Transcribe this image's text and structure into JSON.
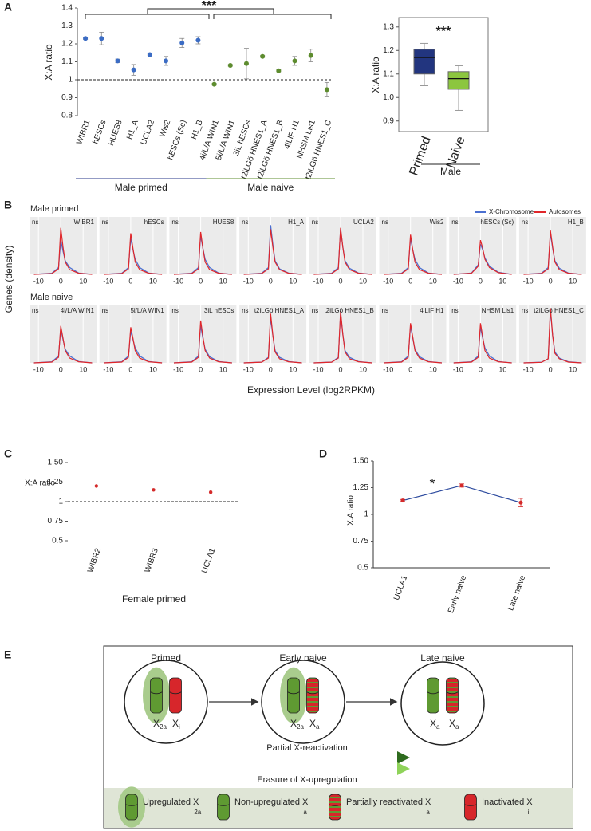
{
  "panels": [
    "A",
    "B",
    "C",
    "D",
    "E"
  ],
  "chart_data": [
    {
      "type": "dot-errorbar",
      "ylabel": "X:A ratio",
      "ylim": [
        0.8,
        1.4
      ],
      "yticks": [
        0.8,
        0.9,
        1,
        1.1,
        1.2,
        1.3,
        1.4
      ],
      "hline": 1,
      "annotation": "***",
      "series": [
        {
          "name": "Male primed",
          "color": "#3b6cc4",
          "label_color": "#27378a",
          "categories": [
            "WIBR1",
            "hESCs",
            "HUES8",
            "H1_A",
            "UCLA2",
            "Wis2",
            "hESCs (Sc)",
            "H1_B"
          ],
          "values": [
            1.23,
            1.23,
            1.105,
            1.055,
            1.14,
            1.105,
            1.205,
            1.22
          ],
          "errors": [
            0.005,
            0.035,
            0.01,
            0.03,
            0.005,
            0.025,
            0.025,
            0.02
          ]
        },
        {
          "name": "Male naive",
          "color": "#5d8c2e",
          "label_color": "#5d8c2e",
          "categories": [
            "4i/L/A WIN1",
            "5i/L/A WIN1",
            "3iL hESCs",
            "t2iLGö HNES1_A",
            "t2iLGö HNES1_B",
            "4iLIF H1",
            "NHSM Lis1",
            "t2iLGö HNES1_C"
          ],
          "values": [
            0.975,
            1.08,
            1.09,
            1.13,
            1.05,
            1.105,
            1.135,
            0.945
          ],
          "errors": [
            0.005,
            0.005,
            0.085,
            0.005,
            0.005,
            0.025,
            0.035,
            0.04
          ]
        }
      ]
    },
    {
      "type": "box",
      "ylabel": "X:A ratio",
      "ylim": [
        0.855,
        1.34
      ],
      "yticks": [
        0.9,
        {
          "value": 1,
          "label": "1.0"
        },
        1.1,
        1.2,
        1.3
      ],
      "annotation": "***",
      "xlabel": "Male",
      "categories": [
        "Primed",
        "Naive"
      ],
      "colors": [
        "#22357f",
        "#8cc63f"
      ],
      "label_colors": [
        "#22357f",
        "#6aa632"
      ],
      "min": [
        1.05,
        0.945
      ],
      "q1": [
        1.1,
        1.035
      ],
      "median": [
        1.17,
        1.08
      ],
      "q3": [
        1.205,
        1.11
      ],
      "max": [
        1.23,
        1.135
      ]
    },
    {
      "type": "density-facets",
      "ylabel": "Genes (density)",
      "xlabel": "Expression Level (log2RPKM)",
      "xlim": [
        -14,
        16
      ],
      "ylim": [
        0,
        0.42
      ],
      "xticks": [
        -10,
        0,
        10
      ],
      "x": [
        -12,
        -4,
        -1,
        0,
        1,
        2,
        4,
        8,
        14
      ],
      "series": [
        {
          "name": "X-Chromosome",
          "color": "#4a6fd0"
        },
        {
          "name": "Autosomes",
          "color": "#e0262a"
        }
      ],
      "rows": [
        {
          "title": "Male primed",
          "facets": [
            {
              "label": "WIBR1",
              "annotation": "ns",
              "values": [
                [
                  0,
                  0.008,
                  0.05,
                  0.25,
                  0.17,
                  0.1,
                  0.05,
                  0.01,
                  0
                ],
                [
                  0,
                  0.006,
                  0.04,
                  0.34,
                  0.2,
                  0.09,
                  0.035,
                  0.008,
                  0
                ]
              ]
            },
            {
              "label": "hESCs",
              "annotation": "ns",
              "values": [
                [
                  0,
                  0.008,
                  0.05,
                  0.26,
                  0.18,
                  0.11,
                  0.05,
                  0.01,
                  0
                ],
                [
                  0,
                  0.006,
                  0.04,
                  0.3,
                  0.19,
                  0.09,
                  0.035,
                  0.008,
                  0
                ]
              ]
            },
            {
              "label": "HUES8",
              "annotation": "ns",
              "values": [
                [
                  0,
                  0.008,
                  0.05,
                  0.28,
                  0.19,
                  0.11,
                  0.05,
                  0.01,
                  0
                ],
                [
                  0,
                  0.006,
                  0.04,
                  0.31,
                  0.19,
                  0.09,
                  0.035,
                  0.008,
                  0
                ]
              ]
            },
            {
              "label": "H1_A",
              "annotation": "ns",
              "values": [
                [
                  0,
                  0.008,
                  0.05,
                  0.36,
                  0.22,
                  0.1,
                  0.04,
                  0.01,
                  0
                ],
                [
                  0,
                  0.006,
                  0.04,
                  0.33,
                  0.2,
                  0.09,
                  0.035,
                  0.008,
                  0
                ]
              ]
            },
            {
              "label": "UCLA2",
              "annotation": "ns",
              "values": [
                [
                  0,
                  0.008,
                  0.05,
                  0.33,
                  0.2,
                  0.1,
                  0.045,
                  0.01,
                  0
                ],
                [
                  0,
                  0.006,
                  0.04,
                  0.34,
                  0.2,
                  0.09,
                  0.035,
                  0.008,
                  0
                ]
              ]
            },
            {
              "label": "Wis2",
              "annotation": "ns",
              "values": [
                [
                  0,
                  0.008,
                  0.05,
                  0.26,
                  0.18,
                  0.11,
                  0.05,
                  0.01,
                  0
                ],
                [
                  0,
                  0.006,
                  0.04,
                  0.29,
                  0.18,
                  0.09,
                  0.035,
                  0.008,
                  0
                ]
              ]
            },
            {
              "label": "hESCs (Sc)",
              "annotation": "ns",
              "values": [
                [
                  0,
                  0.01,
                  0.07,
                  0.22,
                  0.18,
                  0.12,
                  0.06,
                  0.015,
                  0
                ],
                [
                  0,
                  0.008,
                  0.06,
                  0.25,
                  0.19,
                  0.11,
                  0.05,
                  0.012,
                  0
                ]
              ]
            },
            {
              "label": "H1_B",
              "annotation": "ns",
              "values": [
                [
                  0,
                  0.008,
                  0.05,
                  0.3,
                  0.19,
                  0.1,
                  0.045,
                  0.01,
                  0
                ],
                [
                  0,
                  0.006,
                  0.04,
                  0.32,
                  0.2,
                  0.09,
                  0.035,
                  0.008,
                  0
                ]
              ]
            }
          ]
        },
        {
          "title": "Male naive",
          "facets": [
            {
              "label": "4i/L/A WIN1",
              "annotation": "ns",
              "values": [
                [
                  0,
                  0.008,
                  0.05,
                  0.25,
                  0.17,
                  0.1,
                  0.05,
                  0.01,
                  0
                ],
                [
                  0,
                  0.006,
                  0.04,
                  0.27,
                  0.18,
                  0.09,
                  0.035,
                  0.008,
                  0
                ]
              ]
            },
            {
              "label": "5i/L/A WIN1",
              "annotation": "ns",
              "values": [
                [
                  0,
                  0.008,
                  0.05,
                  0.23,
                  0.17,
                  0.11,
                  0.05,
                  0.01,
                  0
                ],
                [
                  0,
                  0.006,
                  0.04,
                  0.26,
                  0.18,
                  0.09,
                  0.035,
                  0.008,
                  0
                ]
              ]
            },
            {
              "label": "3iL hESCs",
              "annotation": "ns",
              "values": [
                [
                  0,
                  0.008,
                  0.05,
                  0.27,
                  0.18,
                  0.1,
                  0.045,
                  0.01,
                  0
                ],
                [
                  0,
                  0.006,
                  0.04,
                  0.31,
                  0.19,
                  0.09,
                  0.035,
                  0.008,
                  0
                ]
              ]
            },
            {
              "label": "t2iLGö HNES1_A",
              "annotation": "ns",
              "values": [
                [
                  0,
                  0.006,
                  0.04,
                  0.33,
                  0.2,
                  0.09,
                  0.04,
                  0.01,
                  0
                ],
                [
                  0,
                  0.005,
                  0.035,
                  0.36,
                  0.2,
                  0.08,
                  0.03,
                  0.008,
                  0
                ]
              ]
            },
            {
              "label": "t2iLGö HNES1_B",
              "annotation": "ns",
              "values": [
                [
                  0,
                  0.006,
                  0.04,
                  0.36,
                  0.21,
                  0.09,
                  0.04,
                  0.01,
                  0
                ],
                [
                  0,
                  0.005,
                  0.035,
                  0.38,
                  0.21,
                  0.08,
                  0.03,
                  0.008,
                  0
                ]
              ]
            },
            {
              "label": "4iLIF H1",
              "annotation": "ns",
              "values": [
                [
                  0,
                  0.008,
                  0.05,
                  0.27,
                  0.18,
                  0.1,
                  0.045,
                  0.01,
                  0
                ],
                [
                  0,
                  0.006,
                  0.04,
                  0.29,
                  0.19,
                  0.09,
                  0.035,
                  0.008,
                  0
                ]
              ]
            },
            {
              "label": "NHSM Lis1",
              "annotation": "ns",
              "values": [
                [
                  0,
                  0.008,
                  0.05,
                  0.26,
                  0.18,
                  0.11,
                  0.05,
                  0.01,
                  0
                ],
                [
                  0,
                  0.006,
                  0.04,
                  0.29,
                  0.19,
                  0.09,
                  0.035,
                  0.008,
                  0
                ]
              ]
            },
            {
              "label": "t2iLGö HNES1_C",
              "annotation": "ns",
              "values": [
                [
                  0,
                  0.005,
                  0.03,
                  0.38,
                  0.2,
                  0.08,
                  0.035,
                  0.008,
                  0
                ],
                [
                  0,
                  0.004,
                  0.03,
                  0.4,
                  0.2,
                  0.07,
                  0.03,
                  0.006,
                  0
                ]
              ]
            }
          ]
        }
      ]
    },
    {
      "type": "dot",
      "ylabel": "X:A ratio",
      "xlabel": "Female primed",
      "ylim": [
        0.5,
        1.5
      ],
      "yticks": [
        0.5,
        0.75,
        1,
        1.25,
        {
          "value": 1.5,
          "label": "1.50"
        }
      ],
      "hline": 1,
      "categories": [
        "WIBR2",
        "WIBR3",
        "UCLA1"
      ],
      "values": [
        1.2,
        1.15,
        1.12
      ],
      "color": "#d42a2a"
    },
    {
      "type": "line-errorbar",
      "ylabel": "X:A ratio",
      "ylim": [
        0.5,
        1.5
      ],
      "yticks": [
        0.5,
        0.75,
        1,
        1.25,
        {
          "value": 1.5,
          "label": "1.50"
        }
      ],
      "categories": [
        "UCLA1",
        "Early naive",
        "Late naive"
      ],
      "values": [
        1.13,
        1.27,
        1.11
      ],
      "errors": [
        0.01,
        0.015,
        0.04
      ],
      "line_color": "#2c4a9e",
      "color": "#d42a2a",
      "annotation": "*"
    }
  ],
  "diagram": {
    "states": [
      {
        "title": "Primed",
        "chromosomes": [
          {
            "base": "X",
            "sub": "2a"
          },
          {
            "base": "X",
            "sub": "i"
          }
        ]
      },
      {
        "title": "Early naive",
        "chromosomes": [
          {
            "base": "X",
            "sub": "2a"
          },
          {
            "base": "X",
            "sub": "a"
          }
        ]
      },
      {
        "title": "Late naive",
        "chromosomes": [
          {
            "base": "X",
            "sub": "a"
          },
          {
            "base": "X",
            "sub": "a"
          }
        ]
      }
    ],
    "arrows": [
      "Partial  X-reactivation",
      "Erasure of X-upregulation"
    ],
    "legend": [
      {
        "label": "Upregulated X",
        "sub": "2a"
      },
      {
        "label": "Non-upregulated X",
        "sub": "a"
      },
      {
        "label": "Partially reactivated X",
        "sub": "a"
      },
      {
        "label": "Inactivated X",
        "sub": "i"
      }
    ]
  }
}
